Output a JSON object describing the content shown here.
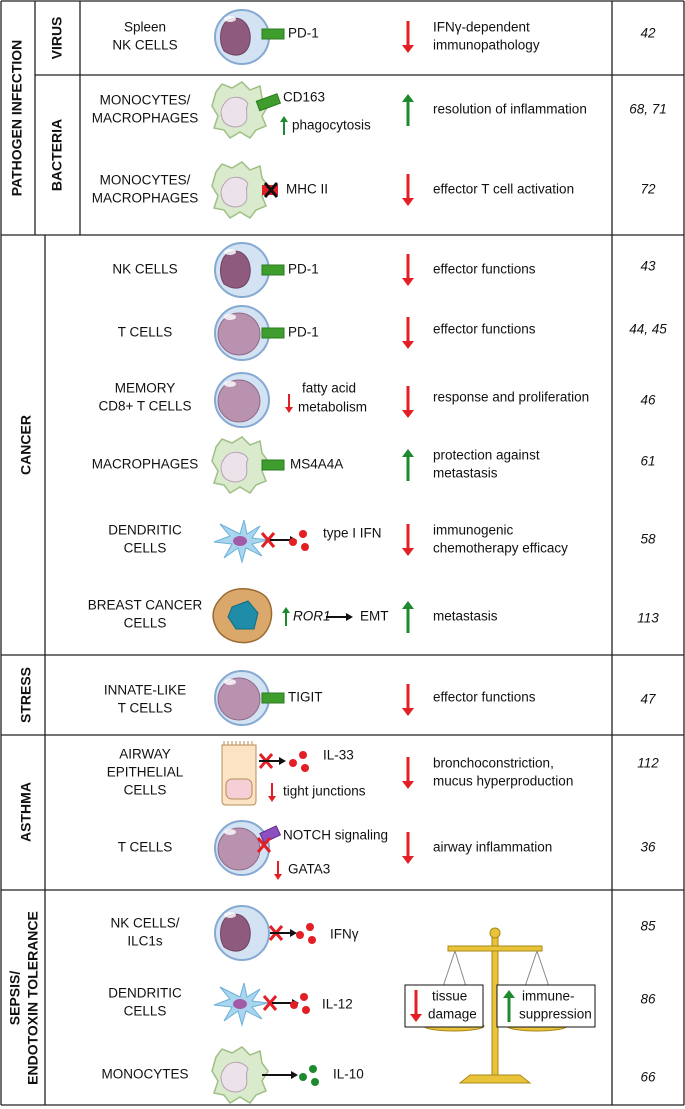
{
  "sections": [
    {
      "label": "PATHOGEN INFECTION",
      "subsections": [
        {
          "label": "VIRUS",
          "rows": [
            {
              "cell": [
                "Spleen",
                "NK CELLS"
              ],
              "marker": "PD-1",
              "outcome": [
                "IFNγ-dependent",
                "immunopathology"
              ],
              "ref": "42"
            }
          ]
        },
        {
          "label": "BACTERIA",
          "rows": [
            {
              "cell": [
                "MONOCYTES/",
                "MACROPHAGES"
              ],
              "marker": "CD163",
              "note": "phagocytosis",
              "outcome": [
                "resolution of inflammation"
              ],
              "ref": "68, 71"
            },
            {
              "cell": [
                "MONOCYTES/",
                "MACROPHAGES"
              ],
              "marker": "MHC II",
              "outcome": [
                "effector T cell activation"
              ],
              "ref": "72"
            }
          ]
        }
      ]
    },
    {
      "label": "CANCER",
      "rows": [
        {
          "cell": [
            "NK CELLS"
          ],
          "marker": "PD-1",
          "outcome": [
            "effector functions"
          ],
          "ref": "43"
        },
        {
          "cell": [
            "T CELLS"
          ],
          "marker": "PD-1",
          "outcome": [
            "effector functions"
          ],
          "ref": "44, 45"
        },
        {
          "cell": [
            "MEMORY",
            "CD8+ T CELLS"
          ],
          "note": [
            "fatty acid",
            "metabolism"
          ],
          "outcome": [
            "response and proliferation"
          ],
          "ref": "46"
        },
        {
          "cell": [
            "MACROPHAGES"
          ],
          "marker": "MS4A4A",
          "outcome": [
            "protection against",
            "metastasis"
          ],
          "ref": "61"
        },
        {
          "cell": [
            "DENDRITIC",
            "CELLS"
          ],
          "marker": "type I IFN",
          "outcome": [
            "immunogenic",
            "chemotherapy efficacy"
          ],
          "ref": "58"
        },
        {
          "cell": [
            "BREAST CANCER",
            "CELLS"
          ],
          "marker": "ROR1",
          "note": "EMT",
          "outcome": [
            "metastasis"
          ],
          "ref": "113"
        }
      ]
    },
    {
      "label": "STRESS",
      "rows": [
        {
          "cell": [
            "INNATE-LIKE",
            "T CELLS"
          ],
          "marker": "TIGIT",
          "outcome": [
            "effector functions"
          ],
          "ref": "47"
        }
      ]
    },
    {
      "label": "ASTHMA",
      "rows": [
        {
          "cell": [
            "AIRWAY",
            "EPITHELIAL",
            "CELLS"
          ],
          "marker": "IL-33",
          "note": "tight junctions",
          "outcome": [
            "bronchoconstriction,",
            "mucus hyperproduction"
          ],
          "ref": "112"
        },
        {
          "cell": [
            "T CELLS"
          ],
          "marker": "NOTCH signaling",
          "note": "GATA3",
          "outcome": [
            "airway inflammation"
          ],
          "ref": "36"
        }
      ]
    },
    {
      "label": [
        "SEPSIS/",
        "ENDOTOXIN TOLERANCE"
      ],
      "rows": [
        {
          "cell": [
            "NK CELLS/",
            "ILC1s"
          ],
          "marker": "IFNγ",
          "ref": "85"
        },
        {
          "cell": [
            "DENDRITIC",
            "CELLS"
          ],
          "marker": "IL-12",
          "ref": "86"
        },
        {
          "cell": [
            "MONOCYTES"
          ],
          "marker": "IL-10",
          "ref": "66"
        }
      ],
      "balance": {
        "left": [
          "tissue",
          "damage"
        ],
        "right": [
          "immune-",
          "suppression"
        ]
      }
    }
  ]
}
